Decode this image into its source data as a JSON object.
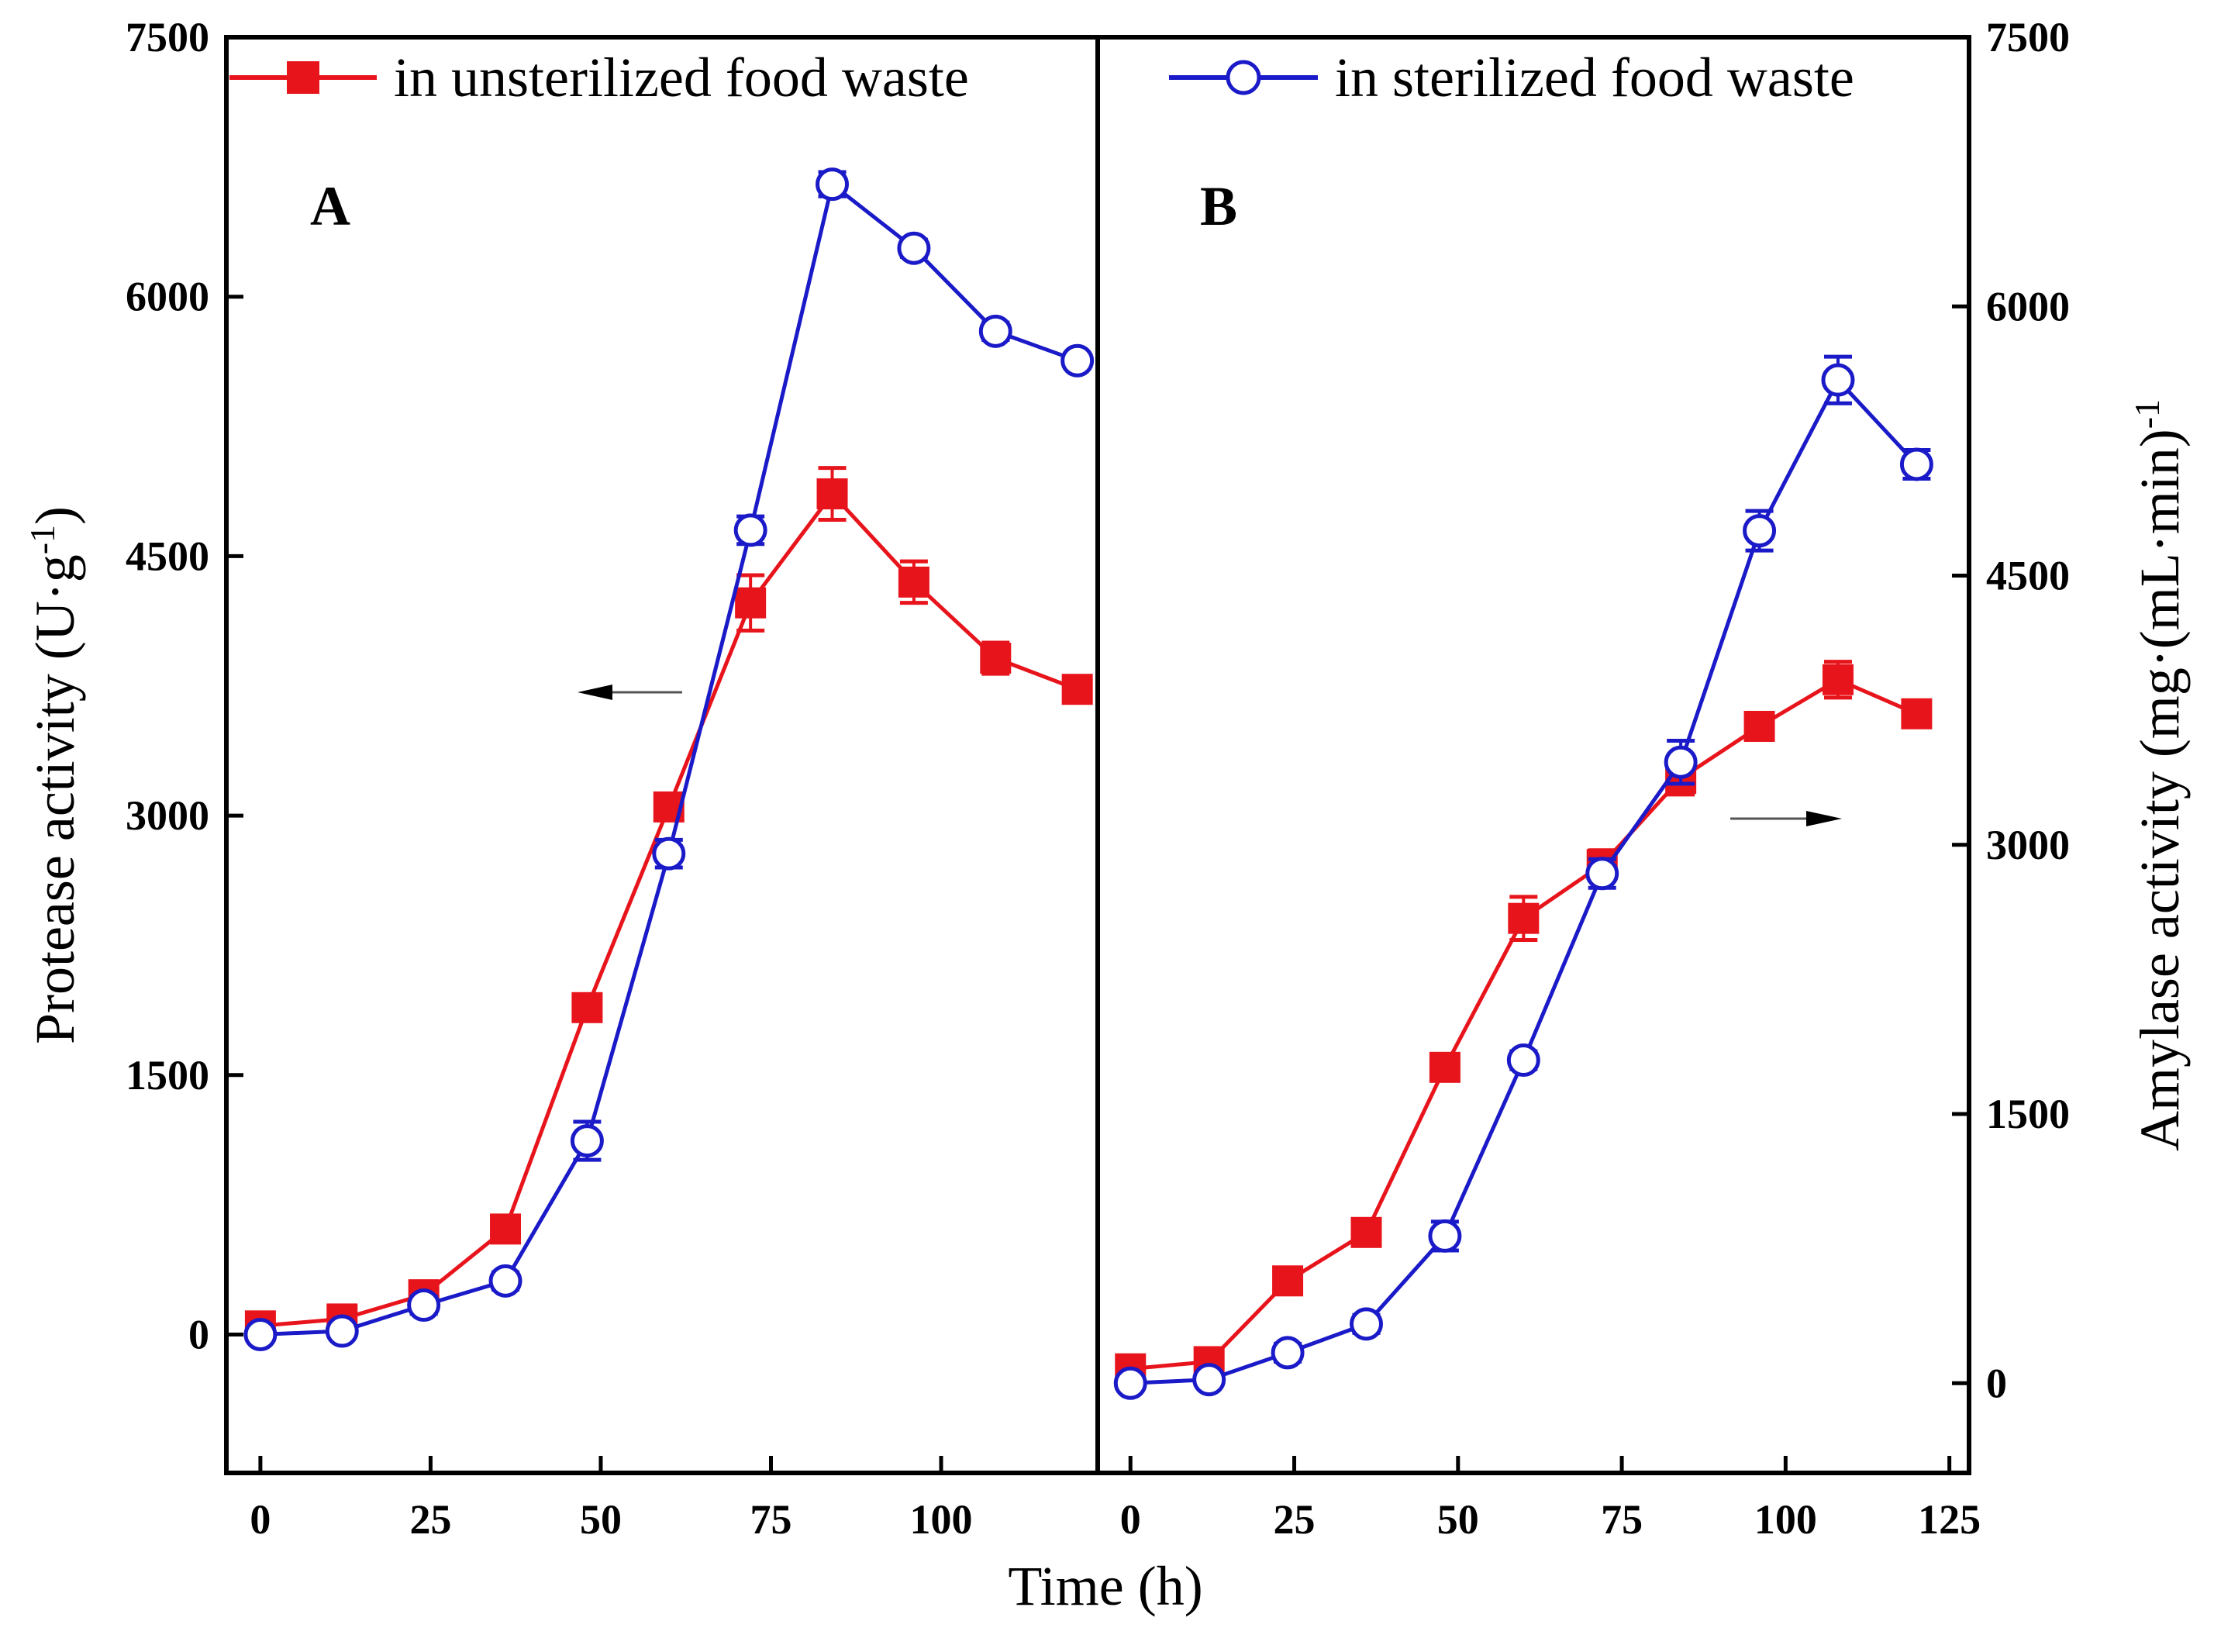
{
  "chart_data": [
    {
      "panel": "A",
      "type": "line",
      "ylabel_main": "Protease activity (U·g",
      "ylabel_sup": "-1",
      "ylabel_close": ")",
      "xlabel": "Time (h)",
      "ylim": [
        -800,
        7500
      ],
      "xlim": [
        -5,
        123
      ],
      "yticks": [
        0,
        1500,
        3000,
        4500,
        6000,
        7500
      ],
      "xticks": [
        0,
        25,
        50,
        75,
        100
      ],
      "axis_arrow": "left",
      "series": [
        {
          "name": "in unsterilized food waste",
          "color": "#e8141c",
          "marker": "square-filled",
          "x": [
            0,
            12,
            24,
            36,
            48,
            60,
            72,
            84,
            96,
            108,
            120
          ],
          "values": [
            50,
            90,
            230,
            610,
            1890,
            3050,
            4230,
            4860,
            4350,
            3910,
            3730
          ],
          "errors": [
            30,
            30,
            40,
            50,
            50,
            50,
            160,
            150,
            120,
            90,
            50
          ]
        },
        {
          "name": "in sterilized food waste",
          "color": "#1a1ac8",
          "marker": "circle-open",
          "x": [
            0,
            12,
            24,
            36,
            48,
            60,
            72,
            84,
            96,
            108,
            120
          ],
          "values": [
            0,
            20,
            170,
            310,
            1120,
            2780,
            4650,
            6650,
            6280,
            5800,
            5630
          ],
          "errors": [
            30,
            30,
            50,
            50,
            110,
            80,
            80,
            70,
            50,
            50,
            40
          ]
        }
      ]
    },
    {
      "panel": "B",
      "type": "line",
      "ylabel_main": "Amylase activity (mg·(mL·min)",
      "ylabel_sup": "-1",
      "xlabel": "Time (h)",
      "ylim": [
        -500,
        7500
      ],
      "xlim": [
        -5,
        128
      ],
      "yticks": [
        0,
        1500,
        3000,
        4500,
        6000,
        7500
      ],
      "xticks": [
        0,
        25,
        50,
        75,
        100,
        125
      ],
      "axis_arrow": "right",
      "series": [
        {
          "name": "in unsterilized food waste",
          "color": "#e8141c",
          "marker": "square-filled",
          "x": [
            0,
            12,
            24,
            36,
            48,
            60,
            72,
            84,
            96,
            108,
            120
          ],
          "values": [
            80,
            120,
            570,
            840,
            1760,
            2590,
            2890,
            3370,
            3660,
            3920,
            3730
          ],
          "errors": [
            20,
            20,
            40,
            50,
            50,
            120,
            80,
            90,
            60,
            100,
            50
          ]
        },
        {
          "name": "in sterilized food waste",
          "color": "#1a1ac8",
          "marker": "circle-open",
          "x": [
            0,
            12,
            24,
            36,
            48,
            60,
            72,
            84,
            96,
            108,
            120
          ],
          "values": [
            0,
            20,
            170,
            330,
            820,
            1800,
            2840,
            3460,
            4750,
            5590,
            5120
          ],
          "errors": [
            20,
            20,
            50,
            50,
            80,
            50,
            80,
            120,
            110,
            130,
            80
          ]
        }
      ]
    }
  ]
}
